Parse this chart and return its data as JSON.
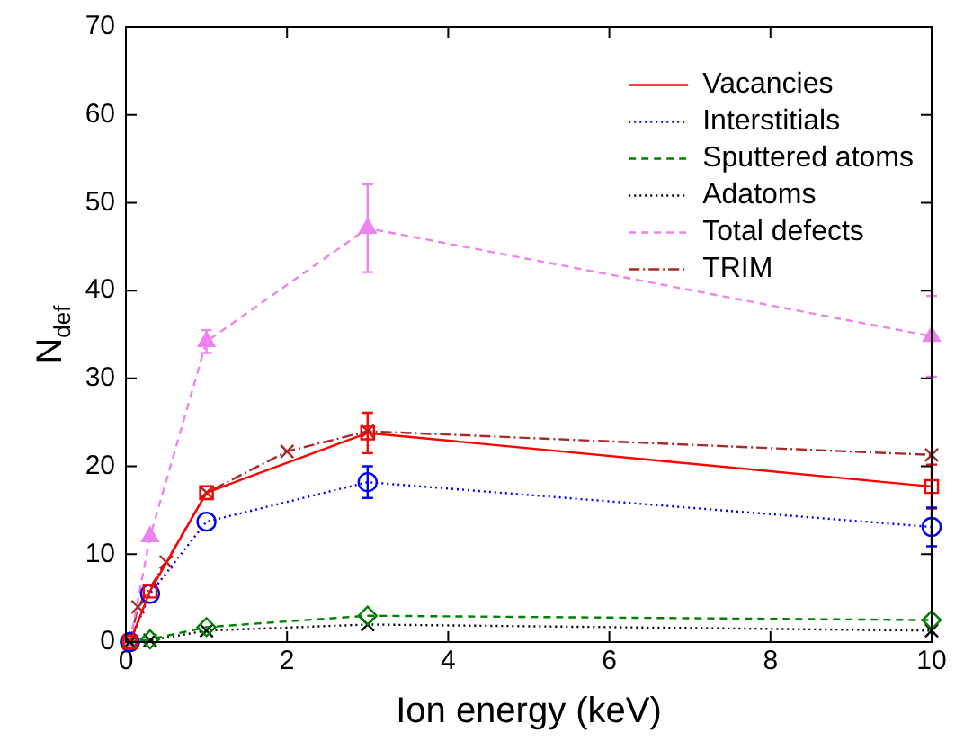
{
  "chart_data": {
    "type": "line",
    "xlabel": "Ion energy (keV)",
    "ylabel": "N$_{def}$",
    "xlim": [
      0,
      10
    ],
    "xticks": [
      0,
      2,
      4,
      6,
      8,
      10
    ],
    "ylim": [
      0,
      70
    ],
    "yticks": [
      0,
      10,
      20,
      30,
      40,
      50,
      60,
      70
    ],
    "grid": false,
    "legend": "top right",
    "series": [
      {
        "name": "Vacancies",
        "color": "#ff0000",
        "marker": "square",
        "line_style": "solid",
        "x": [
          0.05,
          0.3,
          1,
          3,
          10
        ],
        "values": [
          0,
          5.8,
          17,
          23.8,
          17.7
        ],
        "errors": [
          null,
          null,
          null,
          2.3,
          2.5
        ]
      },
      {
        "name": "Interstitials",
        "color": "#0000ff",
        "marker": "circle",
        "line_style": "dotted",
        "x": [
          0.05,
          0.3,
          1,
          3,
          10
        ],
        "values": [
          0,
          5.5,
          13.7,
          18.2,
          13.1
        ],
        "errors": [
          null,
          null,
          null,
          1.8,
          2.2
        ]
      },
      {
        "name": "Sputtered atoms",
        "color": "#008000",
        "marker": "diamond",
        "line_style": "dashed",
        "x": [
          0.05,
          0.3,
          1,
          3,
          10
        ],
        "values": [
          0,
          0.3,
          1.7,
          3,
          2.5
        ]
      },
      {
        "name": "Adatoms",
        "color": "#000000",
        "marker": "cross",
        "line_style": "dotted",
        "x": [
          0.05,
          0.3,
          1,
          3,
          10
        ],
        "values": [
          0,
          0.2,
          1.3,
          2,
          1.3
        ]
      },
      {
        "name": "Total defects",
        "color": "#ee82ee",
        "marker": "triangle",
        "line_style": "dashed",
        "x": [
          0.05,
          0.3,
          1,
          3,
          10
        ],
        "values": [
          0,
          12,
          34.2,
          47.1,
          34.8
        ],
        "errors": [
          null,
          null,
          1.3,
          5,
          4.6
        ]
      },
      {
        "name": "TRIM",
        "color": "#a52a2a",
        "marker": "cross",
        "line_style": "dashdot",
        "x": [
          0.05,
          0.15,
          0.5,
          1,
          2,
          3,
          10
        ],
        "values": [
          0,
          4,
          9.1,
          17,
          21.7,
          24,
          21.3
        ]
      }
    ]
  }
}
